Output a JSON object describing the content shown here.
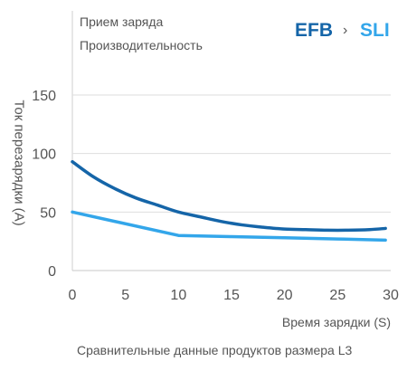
{
  "chart_data": {
    "type": "line",
    "title_lines": [
      "Прием заряда",
      "Производительность"
    ],
    "brand": {
      "left": "EFB",
      "separator": "›",
      "right": "SLI"
    },
    "xlabel": "Время зарядки (S)",
    "ylabel": "Ток перезарядки (A)",
    "caption": "Сравнительные данные продуктов размера L3",
    "xlim": [
      0,
      30
    ],
    "ylim": [
      0,
      150
    ],
    "x_ticks": [
      0,
      5,
      10,
      15,
      20,
      25,
      30
    ],
    "y_ticks": [
      0,
      50,
      100,
      150
    ],
    "grid": true,
    "series": [
      {
        "label": "EFB",
        "color": "#1565a8",
        "x": [
          0,
          2,
          4,
          6,
          8,
          10,
          12,
          14,
          16,
          18,
          20,
          22,
          24,
          26,
          28,
          29.5
        ],
        "y": [
          93,
          80,
          70,
          62,
          56,
          50,
          46,
          42,
          39,
          37,
          35.5,
          35,
          34.5,
          34.5,
          35,
          36
        ]
      },
      {
        "label": "SLI",
        "color": "#33a6ea",
        "x": [
          0,
          10,
          15,
          20,
          25,
          29.5
        ],
        "y": [
          50,
          30,
          29,
          28,
          27,
          26
        ]
      }
    ]
  }
}
